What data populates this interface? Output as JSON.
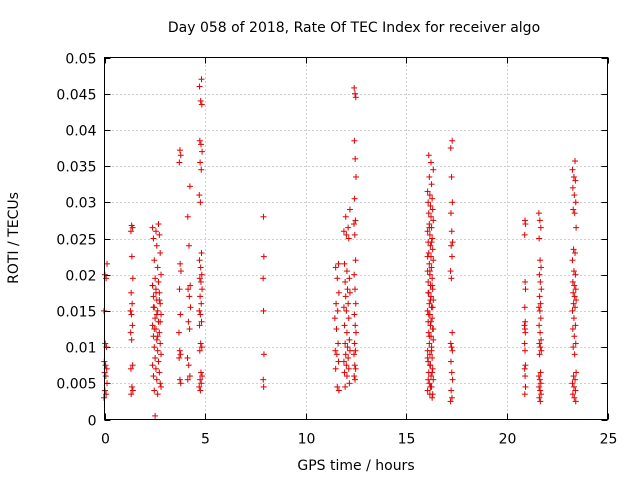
{
  "chart_data": {
    "type": "scatter",
    "title": "Day 058 of 2018, Rate Of TEC Index for receiver algo",
    "xlabel": "GPS time / hours",
    "ylabel": "ROTI / TECUs",
    "xlim": [
      0,
      25
    ],
    "ylim": [
      0,
      0.05
    ],
    "xticks": [
      0,
      5,
      10,
      15,
      20,
      25
    ],
    "xtick_labels": [
      "0",
      "5",
      "10",
      "15",
      "20",
      "25"
    ],
    "yticks": [
      0,
      0.005,
      0.01,
      0.015,
      0.02,
      0.025,
      0.03,
      0.035,
      0.04,
      0.045,
      0.05
    ],
    "ytick_labels": [
      "0",
      "0.005",
      "0.01",
      "0.015",
      "0.02",
      "0.025",
      "0.03",
      "0.035",
      "0.04",
      "0.045",
      "0.05"
    ],
    "grid": true,
    "marker": "+",
    "marker_color": "#e00000",
    "clusters": [
      {
        "t": 0.05,
        "tspread": 0.15,
        "y": [
          0.003,
          0.0035,
          0.004,
          0.005,
          0.006,
          0.0065,
          0.007,
          0.0075,
          0.008,
          0.01,
          0.0105,
          0.015,
          0.0195,
          0.02,
          0.0215
        ]
      },
      {
        "t": 1.35,
        "tspread": 0.12,
        "y": [
          0.0035,
          0.004,
          0.0045,
          0.007,
          0.0075,
          0.011,
          0.012,
          0.013,
          0.0145,
          0.015,
          0.016,
          0.0175,
          0.0195,
          0.0225,
          0.026,
          0.0265,
          0.0268
        ]
      },
      {
        "t": 2.6,
        "tspread": 0.42,
        "y": [
          0.0035,
          0.004,
          0.005,
          0.0055,
          0.006,
          0.0065,
          0.007,
          0.0075,
          0.008,
          0.0085,
          0.009,
          0.0095,
          0.01,
          0.0105,
          0.011,
          0.0115,
          0.012,
          0.0125,
          0.013,
          0.0135,
          0.014,
          0.0145,
          0.015,
          0.0155,
          0.016,
          0.0165,
          0.017,
          0.0175,
          0.018,
          0.0185,
          0.019,
          0.0195,
          0.02,
          0.021,
          0.022,
          0.023,
          0.024,
          0.025,
          0.0255,
          0.026,
          0.0265,
          0.027,
          0.0005,
          0.0045,
          0.0115,
          0.0125,
          0.0135,
          0.0145,
          0.0155,
          0.0165,
          0.0175,
          0.0185
        ]
      },
      {
        "t": 3.75,
        "tspread": 0.1,
        "y": [
          0.005,
          0.0055,
          0.0085,
          0.009,
          0.0095,
          0.012,
          0.0145,
          0.018,
          0.0205,
          0.0215,
          0.0355,
          0.0365,
          0.0372
        ]
      },
      {
        "t": 4.2,
        "tspread": 0.15,
        "y": [
          0.0055,
          0.006,
          0.0075,
          0.0085,
          0.0125,
          0.0135,
          0.0155,
          0.017,
          0.018,
          0.0185,
          0.024,
          0.028,
          0.0322
        ]
      },
      {
        "t": 4.78,
        "tspread": 0.14,
        "y": [
          0.004,
          0.0045,
          0.005,
          0.0055,
          0.006,
          0.0065,
          0.0095,
          0.01,
          0.0105,
          0.013,
          0.0135,
          0.0145,
          0.015,
          0.016,
          0.017,
          0.018,
          0.019,
          0.0195,
          0.02,
          0.021,
          0.022,
          0.023,
          0.03,
          0.031,
          0.0345,
          0.0355,
          0.037,
          0.038,
          0.0385,
          0.0435,
          0.044,
          0.046,
          0.047
        ]
      },
      {
        "t": 7.9,
        "tspread": 0.05,
        "y": [
          0.0045,
          0.0055,
          0.009,
          0.015,
          0.0195,
          0.0225,
          0.028
        ]
      },
      {
        "t": 11.55,
        "tspread": 0.2,
        "y": [
          0.004,
          0.0045,
          0.007,
          0.008,
          0.009,
          0.0095,
          0.0105,
          0.0125,
          0.014,
          0.015,
          0.016,
          0.0175,
          0.0195,
          0.021,
          0.0215
        ]
      },
      {
        "t": 12.05,
        "tspread": 0.3,
        "y": [
          0.0045,
          0.005,
          0.006,
          0.0065,
          0.007,
          0.0075,
          0.008,
          0.0085,
          0.009,
          0.0095,
          0.01,
          0.0105,
          0.011,
          0.012,
          0.013,
          0.014,
          0.015,
          0.0155,
          0.016,
          0.017,
          0.0175,
          0.018,
          0.019,
          0.0195,
          0.0205,
          0.0215,
          0.025,
          0.0255,
          0.026,
          0.0265,
          0.028,
          0.029
        ]
      },
      {
        "t": 12.45,
        "tspread": 0.1,
        "y": [
          0.0055,
          0.006,
          0.007,
          0.0075,
          0.009,
          0.0095,
          0.0105,
          0.012,
          0.013,
          0.0145,
          0.016,
          0.018,
          0.02,
          0.022,
          0.0255,
          0.027,
          0.0275,
          0.0305,
          0.0335,
          0.036,
          0.0385,
          0.0445,
          0.045,
          0.0458
        ]
      },
      {
        "t": 16.2,
        "tspread": 0.28,
        "y": [
          0.003,
          0.0035,
          0.004,
          0.0045,
          0.005,
          0.0055,
          0.006,
          0.0065,
          0.007,
          0.0075,
          0.008,
          0.0085,
          0.009,
          0.0095,
          0.01,
          0.0105,
          0.011,
          0.0115,
          0.012,
          0.0125,
          0.013,
          0.0135,
          0.014,
          0.0145,
          0.015,
          0.0155,
          0.016,
          0.0165,
          0.017,
          0.0175,
          0.018,
          0.0185,
          0.019,
          0.0195,
          0.02,
          0.0205,
          0.021,
          0.0215,
          0.022,
          0.0225,
          0.023,
          0.0235,
          0.024,
          0.0245,
          0.025,
          0.0255,
          0.026,
          0.0265,
          0.027,
          0.0275,
          0.028,
          0.0285,
          0.029,
          0.0295,
          0.03,
          0.0305,
          0.031,
          0.0315,
          0.0325,
          0.0335,
          0.0345,
          0.0355,
          0.0365,
          0.0035,
          0.0045,
          0.0055,
          0.0065,
          0.0075,
          0.0085,
          0.0095,
          0.0115,
          0.0125,
          0.0135,
          0.0145,
          0.0155,
          0.0165,
          0.0175,
          0.0185,
          0.0205,
          0.0225,
          0.0245,
          0.0265
        ]
      },
      {
        "t": 17.25,
        "tspread": 0.1,
        "y": [
          0.0025,
          0.003,
          0.004,
          0.0055,
          0.0065,
          0.008,
          0.0095,
          0.01,
          0.0105,
          0.012,
          0.0195,
          0.0205,
          0.0225,
          0.024,
          0.0245,
          0.026,
          0.0285,
          0.03,
          0.0335,
          0.0375,
          0.0385
        ]
      },
      {
        "t": 20.9,
        "tspread": 0.05,
        "y": [
          0.0035,
          0.0045,
          0.006,
          0.007,
          0.0075,
          0.0095,
          0.0105,
          0.012,
          0.0125,
          0.013,
          0.0135,
          0.0155,
          0.018,
          0.019,
          0.0255,
          0.027,
          0.0275
        ]
      },
      {
        "t": 21.65,
        "tspread": 0.12,
        "y": [
          0.0025,
          0.003,
          0.0035,
          0.004,
          0.0045,
          0.005,
          0.0055,
          0.006,
          0.0065,
          0.009,
          0.0095,
          0.01,
          0.0105,
          0.011,
          0.012,
          0.013,
          0.014,
          0.015,
          0.0155,
          0.016,
          0.017,
          0.018,
          0.019,
          0.02,
          0.021,
          0.022,
          0.025,
          0.0265,
          0.0275,
          0.0285
        ]
      },
      {
        "t": 23.35,
        "tspread": 0.18,
        "y": [
          0.0025,
          0.003,
          0.0035,
          0.004,
          0.0045,
          0.005,
          0.0055,
          0.006,
          0.0065,
          0.009,
          0.01,
          0.0105,
          0.0115,
          0.0125,
          0.013,
          0.014,
          0.015,
          0.0155,
          0.016,
          0.0165,
          0.017,
          0.0175,
          0.018,
          0.0185,
          0.019,
          0.02,
          0.0205,
          0.022,
          0.023,
          0.0235,
          0.0265,
          0.0285,
          0.029,
          0.03,
          0.031,
          0.032,
          0.033,
          0.0335,
          0.0345,
          0.0357
        ]
      }
    ]
  }
}
